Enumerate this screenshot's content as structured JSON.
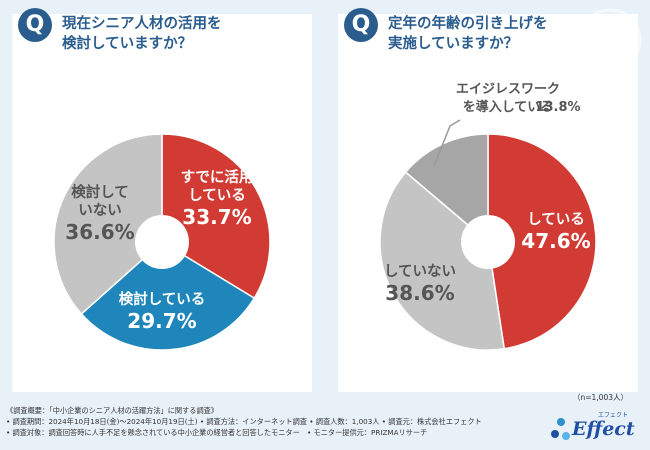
{
  "chart_data": [
    {
      "type": "pie",
      "title": "現在シニア人材の活用を検討していますか？",
      "title_lines": [
        "現在シニア人材の活用を",
        "検討していますか？"
      ],
      "slices": [
        {
          "label": "すでに活用している",
          "label_lines": [
            "すでに活用",
            "している"
          ],
          "value": 33.7,
          "value_text": "33.7%",
          "color": "#d23b33"
        },
        {
          "label": "検討している",
          "label_lines": [
            "検討している"
          ],
          "value": 29.7,
          "value_text": "29.7%",
          "color": "#1f86bb"
        },
        {
          "label": "検討していない",
          "label_lines": [
            "検討して",
            "いない"
          ],
          "value": 36.6,
          "value_text": "36.6%",
          "color": "#c4c4c4"
        }
      ]
    },
    {
      "type": "pie",
      "title": "定年の年齢の引き上げを実施していますか？",
      "title_lines": [
        "定年の年齢の引き上げを",
        "実施していますか？"
      ],
      "slices": [
        {
          "label": "している",
          "label_lines": [
            "している"
          ],
          "value": 47.6,
          "value_text": "47.6%",
          "color": "#d23b33"
        },
        {
          "label": "していない",
          "label_lines": [
            "していない"
          ],
          "value": 38.6,
          "value_text": "38.6%",
          "color": "#c4c4c4"
        },
        {
          "label": "エイジレスワークを導入している",
          "label_lines": [
            "エイジレスワーク",
            "を導入している"
          ],
          "value": 13.8,
          "value_text": "13.8%",
          "color": "#a6a6a6"
        }
      ]
    }
  ],
  "sample_size": "（n=1,003人）",
  "footer": {
    "line1": "《調査概要：「中小企業のシニア人材の活躍方法」に関する調査》",
    "line2": "• 調査期間：2024年10月18日(金)〜2024年10月19日(土) • 調査方法：インターネット調査 • 調査人数：1,003人 • 調査元：株式会社エフェクト",
    "line3": "• 調査対象：調査回答時に人手不足を懸念されている中小企業の経営者と回答したモニター　• モニター提供元：PRIZMAリサーチ"
  },
  "logo": {
    "text": "Effect",
    "ruby": "エフェクト"
  },
  "colors": {
    "accent": "#2a5d8e",
    "red": "#d23b33",
    "blue": "#1f86bb",
    "gray": "#c4c4c4",
    "dark_gray": "#a6a6a6"
  }
}
